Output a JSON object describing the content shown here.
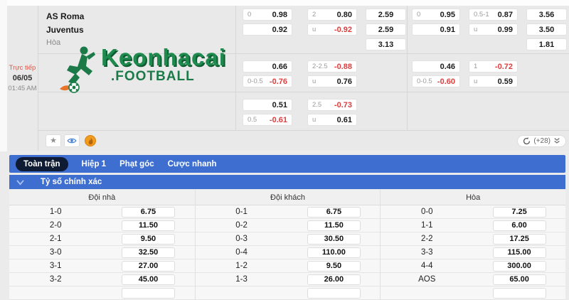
{
  "match": {
    "live_label": "Trực tiếp",
    "date": "06/05",
    "time": "01:45 AM",
    "home_team": "AS Roma",
    "away_team": "Juventus",
    "draw_label": "Hòa",
    "logo_text": "Keonhacai",
    "logo_suffix": ".FOOTBALL"
  },
  "odds_blocks": [
    {
      "left": {
        "ah": [
          {
            "h": "0",
            "v": "0.98"
          },
          {
            "h": "",
            "v": "0.92"
          }
        ],
        "ou": [
          {
            "h": "2",
            "v": "0.80"
          },
          {
            "h": "u",
            "v": "-0.92"
          }
        ],
        "x12": [
          "2.59",
          "2.59",
          "3.13"
        ]
      },
      "right": {
        "ah": [
          {
            "h": "0",
            "v": "0.95"
          },
          {
            "h": "",
            "v": "0.91"
          }
        ],
        "ou": [
          {
            "h": "0.5-1",
            "v": "0.87"
          },
          {
            "h": "u",
            "v": "0.99"
          }
        ],
        "x12": [
          "3.56",
          "3.50",
          "1.81"
        ]
      }
    },
    {
      "left": {
        "ah": [
          {
            "h": "",
            "v": "0.66"
          },
          {
            "h": "0-0.5",
            "v": "-0.76"
          }
        ],
        "ou": [
          {
            "h": "2-2.5",
            "v": "-0.88"
          },
          {
            "h": "u",
            "v": "0.76"
          }
        ],
        "x12": []
      },
      "right": {
        "ah": [
          {
            "h": "",
            "v": "0.46"
          },
          {
            "h": "0-0.5",
            "v": "-0.60"
          }
        ],
        "ou": [
          {
            "h": "1",
            "v": "-0.72"
          },
          {
            "h": "u",
            "v": "0.59"
          }
        ],
        "x12": []
      }
    },
    {
      "left": {
        "ah": [
          {
            "h": "",
            "v": "0.51"
          },
          {
            "h": "0.5",
            "v": "-0.61"
          }
        ],
        "ou": [
          {
            "h": "2.5",
            "v": "-0.73"
          },
          {
            "h": "u",
            "v": "0.61"
          }
        ],
        "x12": []
      },
      "right": null
    }
  ],
  "tools": {
    "refresh_more_label": "(+28)"
  },
  "tabs": [
    {
      "label": "Toàn trận",
      "active": true
    },
    {
      "label": "Hiệp 1",
      "active": false
    },
    {
      "label": "Phạt góc",
      "active": false
    },
    {
      "label": "Cược nhanh",
      "active": false
    }
  ],
  "score_section": {
    "title": "Tỷ số chính xác",
    "columns": [
      {
        "header": "Đội nhà",
        "rows": [
          [
            "1-0",
            "6.75"
          ],
          [
            "2-0",
            "11.50"
          ],
          [
            "2-1",
            "9.50"
          ],
          [
            "3-0",
            "32.50"
          ],
          [
            "3-1",
            "27.00"
          ],
          [
            "3-2",
            "45.00"
          ]
        ]
      },
      {
        "header": "Đội khách",
        "rows": [
          [
            "0-1",
            "6.75"
          ],
          [
            "0-2",
            "11.50"
          ],
          [
            "0-3",
            "30.50"
          ],
          [
            "0-4",
            "110.00"
          ],
          [
            "1-2",
            "9.50"
          ],
          [
            "1-3",
            "26.00"
          ]
        ]
      },
      {
        "header": "Hòa",
        "rows": [
          [
            "0-0",
            "7.25"
          ],
          [
            "1-1",
            "6.00"
          ],
          [
            "2-2",
            "17.25"
          ],
          [
            "3-3",
            "115.00"
          ],
          [
            "4-4",
            "300.00"
          ],
          [
            "AOS",
            "65.00"
          ]
        ]
      }
    ]
  },
  "colors": {
    "accent_blue": "#3e6fd0",
    "active_tab_bg": "#0f1a33",
    "negative_red": "#e03c3c",
    "brand_green": "#1b7a48",
    "live_red": "#e2574a",
    "flame_orange": "#f09c1f"
  }
}
